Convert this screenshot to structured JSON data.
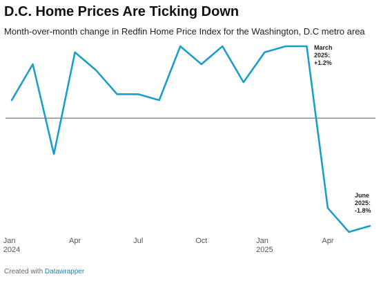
{
  "chart_data": {
    "type": "line",
    "title": "D.C. Home Prices Are Ticking Down",
    "subtitle": "Month-over-month change in Redfin Home Price Index for the Washington, D.C metro area",
    "categories": [
      "Jan\n2024",
      null,
      null,
      "Apr",
      null,
      null,
      "Jul",
      null,
      null,
      "Oct",
      null,
      null,
      "Jan\n2025",
      null,
      null,
      "Apr",
      null,
      null
    ],
    "series": [
      {
        "name": "Month-over-month change",
        "color": "#1a9ec9",
        "values": [
          0.3,
          0.9,
          -0.6,
          1.1,
          0.8,
          0.4,
          0.4,
          0.3,
          1.2,
          0.9,
          1.2,
          0.6,
          1.1,
          1.2,
          1.2,
          -1.5,
          -1.9,
          -1.8
        ]
      }
    ],
    "ylim": [
      -1.9,
      1.2
    ],
    "baseline": 0,
    "annotations": [
      "March\n2025:\n+1.2%",
      "June\n2025:\n-1.8%"
    ],
    "credit": "Created with",
    "credit_link": "Datawrapper"
  }
}
